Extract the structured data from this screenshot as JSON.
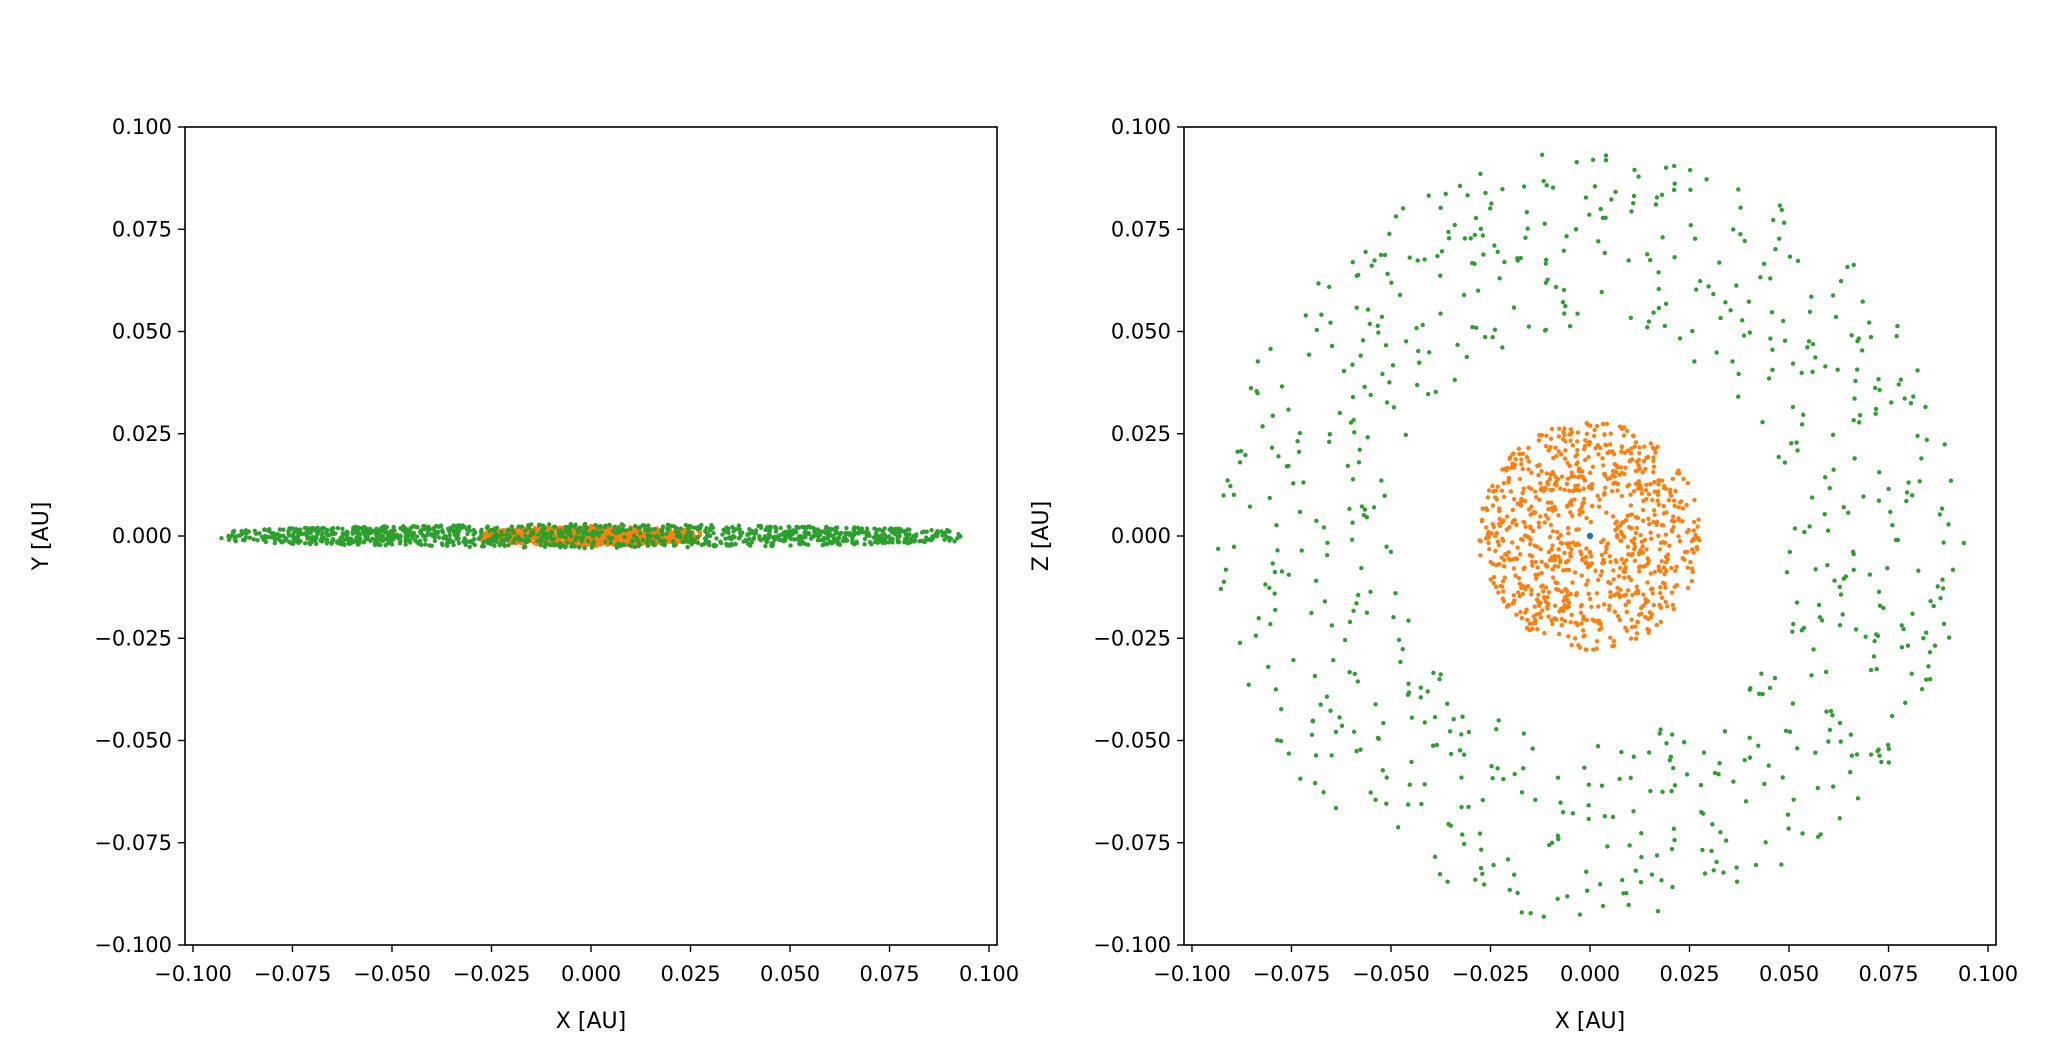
{
  "chart_data": [
    {
      "type": "scatter",
      "title": "",
      "xlabel": "X [AU]",
      "ylabel": "Y [AU]",
      "xlim": [
        -0.102,
        0.102
      ],
      "ylim": [
        -0.1,
        0.1
      ],
      "xticks": [
        "−0.100",
        "−0.075",
        "−0.050",
        "−0.025",
        "0.000",
        "0.025",
        "0.050",
        "0.075",
        "0.100"
      ],
      "yticks": [
        "0.100",
        "0.075",
        "0.050",
        "0.025",
        "0.000",
        "−0.025",
        "−0.050",
        "−0.075",
        "−0.100"
      ],
      "xtick_values": [
        -0.1,
        -0.075,
        -0.05,
        -0.025,
        0.0,
        0.025,
        0.05,
        0.075,
        0.1
      ],
      "ytick_values": [
        0.1,
        0.075,
        0.05,
        0.025,
        0.0,
        -0.025,
        -0.05,
        -0.075,
        -0.1
      ],
      "grid": false,
      "series": [
        {
          "color": "#1f77b4",
          "distribution": "central point",
          "center": [
            0.0,
            0.0
          ],
          "extent": [
            0.0,
            0.0
          ],
          "count": 1
        },
        {
          "color": "#ff7f0e",
          "distribution": "flat ring, edge-on",
          "x_range": [
            -0.028,
            0.028
          ],
          "y_range": [
            -0.0025,
            0.0025
          ],
          "count": 900
        },
        {
          "color": "#2ca02c",
          "distribution": "flat ring, edge-on",
          "x_range": [
            -0.094,
            0.094
          ],
          "y_range": [
            -0.003,
            0.003
          ],
          "count": 1200
        }
      ]
    },
    {
      "type": "scatter",
      "title": "",
      "xlabel": "X [AU]",
      "ylabel": "Z [AU]",
      "xlim": [
        -0.102,
        0.102
      ],
      "ylim": [
        -0.1,
        0.1
      ],
      "xticks": [
        "−0.100",
        "−0.075",
        "−0.050",
        "−0.025",
        "0.000",
        "0.025",
        "0.050",
        "0.075",
        "0.100"
      ],
      "yticks": [
        "0.100",
        "0.075",
        "0.050",
        "0.025",
        "0.000",
        "−0.025",
        "−0.050",
        "−0.075",
        "−0.100"
      ],
      "xtick_values": [
        -0.1,
        -0.075,
        -0.05,
        -0.025,
        0.0,
        0.025,
        0.05,
        0.075,
        0.1
      ],
      "ytick_values": [
        0.1,
        0.075,
        0.05,
        0.025,
        0.0,
        -0.025,
        -0.05,
        -0.075,
        -0.1
      ],
      "grid": false,
      "series": [
        {
          "color": "#1f77b4",
          "distribution": "central point",
          "center": [
            0.0,
            0.0
          ],
          "radius_range": [
            0.0,
            0.0
          ],
          "count": 1
        },
        {
          "color": "#ff7f0e",
          "distribution": "annulus",
          "radius_range": [
            0.003,
            0.028
          ],
          "count": 900
        },
        {
          "color": "#2ca02c",
          "distribution": "annulus",
          "radius_range": [
            0.05,
            0.094
          ],
          "count": 700
        }
      ]
    }
  ]
}
